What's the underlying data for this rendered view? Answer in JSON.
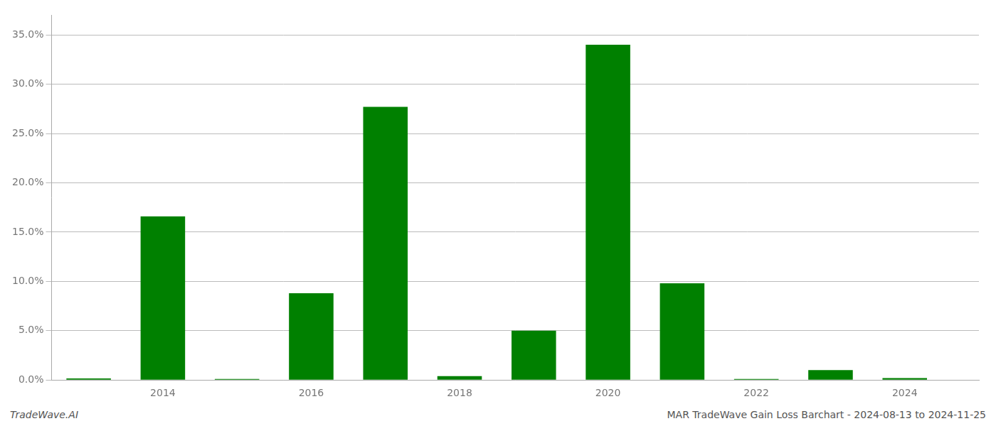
{
  "chart_data": {
    "type": "bar",
    "x": [
      2013,
      2014,
      2015,
      2016,
      2017,
      2018,
      2019,
      2020,
      2021,
      2022,
      2023,
      2024
    ],
    "values": [
      0.0016,
      0.166,
      0.001,
      0.088,
      0.277,
      0.004,
      0.05,
      0.34,
      0.098,
      0.001,
      0.01,
      0.002
    ],
    "color": "#008000",
    "xlim": [
      2012.5,
      2025.0
    ],
    "xticks": [
      2014,
      2016,
      2018,
      2020,
      2022,
      2024
    ],
    "ylim": [
      0,
      0.37
    ],
    "yticks": [
      {
        "value": 0.0,
        "label": "0.0%"
      },
      {
        "value": 0.05,
        "label": "5.0%"
      },
      {
        "value": 0.1,
        "label": "10.0%"
      },
      {
        "value": 0.15,
        "label": "15.0%"
      },
      {
        "value": 0.2,
        "label": "20.0%"
      },
      {
        "value": 0.25,
        "label": "25.0%"
      },
      {
        "value": 0.3,
        "label": "30.0%"
      },
      {
        "value": 0.35,
        "label": "35.0%"
      }
    ],
    "grid": true,
    "annotations": [
      "TradeWave.AI",
      "MAR TradeWave Gain Loss Barchart - 2024-08-13 to 2024-11-25"
    ]
  }
}
